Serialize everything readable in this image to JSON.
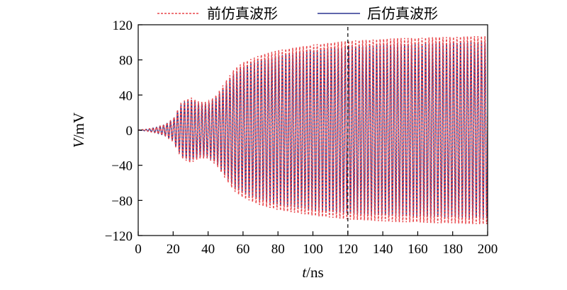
{
  "chart_data": {
    "type": "line",
    "title": "",
    "xlabel_italic": "t",
    "xlabel_unit": "/ns",
    "ylabel_italic": "V",
    "ylabel_unit": "/mV",
    "xlim": [
      0,
      200
    ],
    "ylim": [
      -120,
      120
    ],
    "xticks": [
      "0",
      "20",
      "40",
      "60",
      "80",
      "100",
      "120",
      "140",
      "160",
      "180",
      "200"
    ],
    "yticks": [
      "120",
      "80",
      "40",
      "0",
      "−40",
      "−80",
      "−120"
    ],
    "grid": false,
    "legend_placement": "top-center",
    "marker_x": 120,
    "envelope": {
      "t": [
        0,
        5,
        10,
        15,
        20,
        22,
        25,
        30,
        35,
        40,
        45,
        50,
        55,
        60,
        70,
        80,
        90,
        100,
        110,
        120,
        130,
        140,
        150,
        160,
        170,
        180,
        190,
        200
      ],
      "amplitude": [
        0,
        1,
        3,
        6,
        12,
        20,
        30,
        35,
        30,
        30,
        38,
        52,
        65,
        72,
        80,
        85,
        88,
        91,
        93,
        95,
        96,
        97,
        98,
        98,
        99,
        99,
        100,
        100
      ]
    },
    "series": [
      {
        "name": "前仿真波形",
        "color": "#e8474b",
        "style": "dashed",
        "scale": 1.07
      },
      {
        "name": "后仿真波形",
        "color": "#2b3590",
        "style": "solid",
        "scale": 1.0
      }
    ]
  }
}
